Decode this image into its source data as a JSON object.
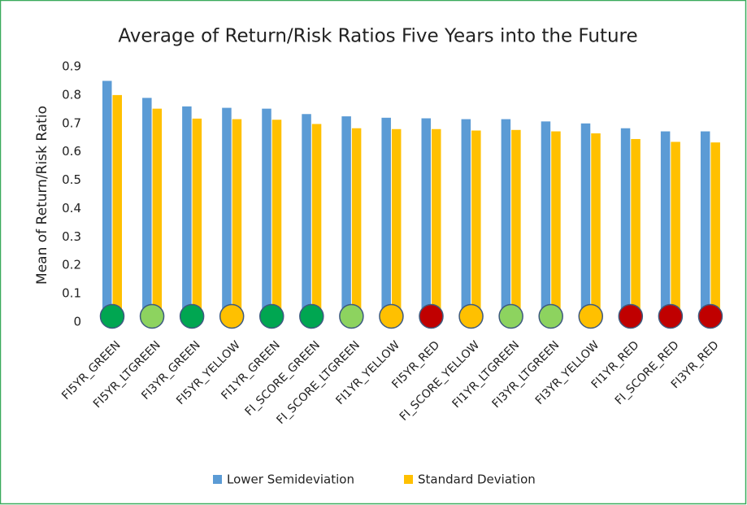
{
  "chart_data": {
    "type": "bar",
    "title": "Average of Return/Risk Ratios Five Years into the Future",
    "y_label": "Mean of Return/Risk Ratio",
    "categories": [
      "FI5YR_GREEN",
      "FI5YR_LTGREEN",
      "FI3YR_GREEN",
      "FI5YR_YELLOW",
      "FI1YR_GREEN",
      "FI_SCORE_GREEN",
      "FI_SCORE_LTGREEN",
      "FI1YR_YELLOW",
      "FI5YR_RED",
      "FI_SCORE_YELLOW",
      "FI1YR_LTGREEN",
      "FI3YR_LTGREEN",
      "FI3YR_YELLOW",
      "FI1YR_RED",
      "FI_SCORE_RED",
      "FI3YR_RED"
    ],
    "category_colors": [
      "#00a651",
      "#8dd35f",
      "#00a651",
      "#ffc000",
      "#00a651",
      "#00a651",
      "#8dd35f",
      "#ffc000",
      "#c00000",
      "#ffc000",
      "#8dd35f",
      "#8dd35f",
      "#ffc000",
      "#c00000",
      "#c00000",
      "#c00000"
    ],
    "series": [
      {
        "name": "Lower Semideviation",
        "color": "#5b9bd5",
        "values": [
          0.85,
          0.79,
          0.76,
          0.755,
          0.752,
          0.733,
          0.725,
          0.72,
          0.718,
          0.715,
          0.715,
          0.707,
          0.7,
          0.683,
          0.672,
          0.672
        ]
      },
      {
        "name": "Standard Deviation",
        "color": "#ffc000",
        "values": [
          0.8,
          0.752,
          0.717,
          0.715,
          0.713,
          0.698,
          0.683,
          0.68,
          0.68,
          0.675,
          0.677,
          0.672,
          0.665,
          0.645,
          0.635,
          0.633
        ]
      }
    ],
    "ylim": [
      0,
      0.9
    ],
    "yticks": [
      0,
      0.1,
      0.2,
      0.3,
      0.4,
      0.5,
      0.6,
      0.7,
      0.8,
      0.9
    ],
    "grid": false,
    "legend": "bottom"
  }
}
